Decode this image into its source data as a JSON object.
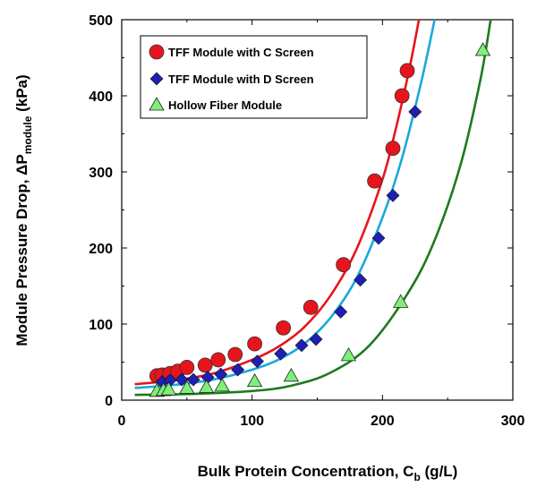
{
  "chart_data": {
    "type": "scatter",
    "title": "",
    "xlabel": {
      "main": "Bulk Protein Concentration, C",
      "sub": "b",
      "unit": " (g/L)"
    },
    "ylabel": {
      "main": "Module Pressure Drop, ΔP",
      "sub": "module",
      "unit": " (kPa)"
    },
    "xlim": [
      0,
      300
    ],
    "ylim": [
      0,
      500
    ],
    "x_ticks": [
      0,
      100,
      200,
      300
    ],
    "y_ticks": [
      0,
      100,
      200,
      300,
      400,
      500
    ],
    "grid": false,
    "legend_position": "top-left",
    "series": [
      {
        "name": "TFF Module with C Screen",
        "marker": "circle",
        "color": "#e8141c",
        "line_color": "#e8141c",
        "points": [
          [
            27,
            32
          ],
          [
            31,
            33
          ],
          [
            37,
            35
          ],
          [
            43,
            38
          ],
          [
            50,
            43
          ],
          [
            64,
            46
          ],
          [
            74,
            53
          ],
          [
            87,
            60
          ],
          [
            102,
            74
          ],
          [
            124,
            95
          ],
          [
            145,
            122
          ],
          [
            170,
            178
          ],
          [
            194,
            288
          ],
          [
            208,
            331
          ],
          [
            215,
            400
          ],
          [
            219,
            433
          ]
        ],
        "fit": [
          [
            10,
            21
          ],
          [
            40,
            26
          ],
          [
            70,
            35
          ],
          [
            100,
            53
          ],
          [
            120,
            70
          ],
          [
            140,
            96
          ],
          [
            160,
            137
          ],
          [
            180,
            198
          ],
          [
            200,
            290
          ],
          [
            210,
            355
          ],
          [
            220,
            430
          ],
          [
            228,
            500
          ]
        ]
      },
      {
        "name": "TFF Module with D Screen",
        "marker": "diamond",
        "color": "#1f1fb4",
        "line_color": "#1aa8dc",
        "points": [
          [
            31,
            24
          ],
          [
            37,
            26
          ],
          [
            46,
            27
          ],
          [
            55,
            27
          ],
          [
            66,
            30
          ],
          [
            76,
            34
          ],
          [
            89,
            40
          ],
          [
            104,
            51
          ],
          [
            122,
            61
          ],
          [
            138,
            72
          ],
          [
            149,
            80
          ],
          [
            168,
            116
          ],
          [
            183,
            158
          ],
          [
            197,
            213
          ],
          [
            208,
            269
          ],
          [
            225,
            379
          ]
        ],
        "fit": [
          [
            10,
            16
          ],
          [
            40,
            20
          ],
          [
            70,
            27
          ],
          [
            100,
            40
          ],
          [
            120,
            53
          ],
          [
            140,
            74
          ],
          [
            160,
            108
          ],
          [
            180,
            160
          ],
          [
            200,
            240
          ],
          [
            215,
            318
          ],
          [
            230,
            420
          ],
          [
            240,
            500
          ]
        ]
      },
      {
        "name": "Hollow Fiber Module",
        "marker": "triangle",
        "color": "#7ef07a",
        "line_color": "#1e7a1e",
        "points": [
          [
            27,
            12
          ],
          [
            32,
            13
          ],
          [
            36,
            14
          ],
          [
            50,
            16
          ],
          [
            65,
            17
          ],
          [
            77,
            19
          ],
          [
            102,
            25
          ],
          [
            130,
            32
          ],
          [
            174,
            59
          ],
          [
            214,
            129
          ],
          [
            277,
            460
          ]
        ],
        "fit": [
          [
            10,
            7
          ],
          [
            50,
            8
          ],
          [
            100,
            12
          ],
          [
            130,
            19
          ],
          [
            160,
            36
          ],
          [
            190,
            72
          ],
          [
            220,
            142
          ],
          [
            240,
            210
          ],
          [
            260,
            310
          ],
          [
            275,
            420
          ],
          [
            283,
            500
          ]
        ]
      }
    ]
  }
}
